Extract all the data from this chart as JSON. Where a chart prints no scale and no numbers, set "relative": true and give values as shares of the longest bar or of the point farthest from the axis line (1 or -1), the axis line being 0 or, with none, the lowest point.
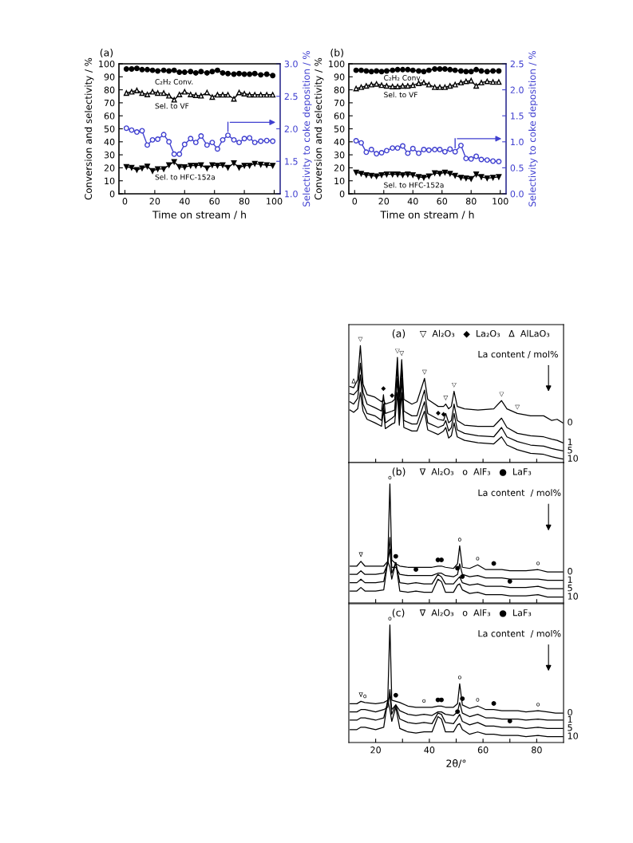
{
  "chart_data": [
    {
      "type": "line",
      "title": "(a)",
      "xlabel": "Time on stream / h",
      "ylabel": "Conversion and selectivity / %",
      "y2label": "Selectivity to coke deposition / %",
      "x": [
        1,
        4.5,
        8,
        11.5,
        15,
        18.5,
        22,
        26,
        29.5,
        33,
        36.5,
        40,
        44,
        47.5,
        51,
        55,
        58.5,
        62,
        65.5,
        69,
        73,
        76.5,
        80,
        83.5,
        87,
        91,
        95,
        99
      ],
      "xlim": [
        -4,
        104
      ],
      "xticks": [
        0,
        20,
        40,
        60,
        80,
        100
      ],
      "ylim": [
        0,
        100
      ],
      "yticks": [
        0,
        10,
        20,
        30,
        40,
        50,
        60,
        70,
        80,
        90,
        100
      ],
      "y2lim": [
        1,
        3
      ],
      "y2ticks": [
        {
          "value": 1,
          "label": "1.0"
        },
        {
          "value": 1.5,
          "label": "1.5"
        },
        {
          "value": 2,
          "label": "2.0"
        },
        {
          "value": 2.5,
          "label": "2.5"
        },
        {
          "value": 3,
          "label": "3.0"
        }
      ],
      "series": [
        {
          "name": "C₂H₂ Conv.",
          "color": "#000000",
          "marker": "circle",
          "values": [
            96,
            96,
            96.5,
            95.5,
            95.5,
            95,
            94.5,
            95,
            94.5,
            95,
            93.5,
            93.5,
            94,
            93,
            94,
            93,
            94,
            95,
            93,
            92.5,
            92,
            92.5,
            92,
            92,
            92.5,
            91.5,
            92,
            91
          ]
        },
        {
          "name": "Sel. to VF",
          "color": "#000000",
          "marker": "triangle-open",
          "values": [
            77.5,
            78.5,
            79.5,
            77.5,
            76.4,
            78.5,
            77.5,
            77.5,
            75.4,
            72.3,
            76.4,
            78.5,
            76.4,
            75.8,
            75.4,
            77.9,
            74.4,
            76.2,
            76.2,
            76.2,
            73,
            77.9,
            77,
            76.2,
            76.2,
            76.2,
            76.2,
            76.2
          ]
        },
        {
          "color": "#4040d0",
          "marker": "circle-open",
          "axis": "y2",
          "values": [
            2.01,
            1.98,
            1.95,
            1.97,
            1.75,
            1.83,
            1.84,
            1.91,
            1.8,
            1.61,
            1.61,
            1.76,
            1.85,
            1.79,
            1.89,
            1.75,
            1.79,
            1.69,
            1.83,
            1.9,
            1.83,
            1.79,
            1.85,
            1.86,
            1.79,
            1.81,
            1.82,
            1.81
          ]
        },
        {
          "name": "Sel. to HFC-152a",
          "color": "#000000",
          "marker": "triangle-down",
          "values": [
            20.7,
            20.1,
            18.4,
            19.7,
            21.1,
            17.6,
            19.1,
            19.1,
            22.1,
            24.6,
            20.7,
            20.5,
            21.7,
            21.7,
            22.1,
            19.7,
            22.1,
            21.7,
            22.1,
            20.1,
            23.6,
            20.1,
            21.7,
            21.7,
            23.2,
            22.5,
            22.1,
            21.7
          ]
        }
      ]
    },
    {
      "type": "line",
      "title": "(b)",
      "xlabel": "Time on stream / h",
      "ylabel": "Conversion and selectivity / %",
      "y2label": "Selectivity to coke deposition / %",
      "x": [
        1,
        4.5,
        8,
        11.5,
        15,
        18.5,
        22,
        26,
        29.5,
        33,
        36.5,
        40,
        44,
        47.5,
        51,
        55,
        58.5,
        62,
        65.5,
        69,
        73,
        76.5,
        80,
        83.5,
        87,
        91,
        95,
        99
      ],
      "xlim": [
        -4,
        104
      ],
      "xticks": [
        0,
        20,
        40,
        60,
        80,
        100
      ],
      "ylim": [
        0,
        100
      ],
      "yticks": [
        0,
        10,
        20,
        30,
        40,
        50,
        60,
        70,
        80,
        90,
        100
      ],
      "y2lim": [
        0,
        2.5
      ],
      "y2ticks": [
        {
          "value": 0,
          "label": "0.0"
        },
        {
          "value": 0.5,
          "label": "0.5"
        },
        {
          "value": 1,
          "label": "1.0"
        },
        {
          "value": 1.5,
          "label": "1.5"
        },
        {
          "value": 2,
          "label": "2.0"
        },
        {
          "value": 2.5,
          "label": "2.5"
        }
      ],
      "series": [
        {
          "name": "C₂H₂ Conv.",
          "color": "#000000",
          "marker": "circle",
          "values": [
            95,
            95,
            94.5,
            94,
            94.5,
            94,
            94.5,
            95,
            95.5,
            95.5,
            95.5,
            95,
            94.5,
            94,
            95,
            96,
            96,
            96,
            95.5,
            95,
            94.5,
            94,
            94,
            95.5,
            94.5,
            94,
            94.5,
            94.5
          ]
        },
        {
          "name": "Sel. to VF",
          "color": "#000000",
          "marker": "triangle-open",
          "values": [
            81,
            82,
            83,
            84,
            84.5,
            83.5,
            83,
            82.5,
            82.5,
            83,
            83,
            83.5,
            85,
            85.5,
            84,
            82,
            82,
            82,
            83,
            84,
            85.5,
            86.5,
            87,
            83,
            85.5,
            86.5,
            86,
            86
          ]
        },
        {
          "color": "#4040d0",
          "marker": "circle-open",
          "axis": "y2",
          "values": [
            1.02,
            0.98,
            0.8,
            0.85,
            0.77,
            0.79,
            0.83,
            0.88,
            0.88,
            0.92,
            0.78,
            0.87,
            0.78,
            0.85,
            0.84,
            0.85,
            0.85,
            0.81,
            0.86,
            0.81,
            0.93,
            0.68,
            0.67,
            0.72,
            0.66,
            0.65,
            0.63,
            0.62
          ]
        },
        {
          "name": "Sel. to HFC-152a",
          "color": "#000000",
          "marker": "triangle-down",
          "values": [
            16.5,
            15.5,
            14.5,
            14,
            13.5,
            14.5,
            15,
            15,
            15,
            14.5,
            15,
            14.5,
            13,
            12.5,
            13.5,
            16,
            15.5,
            16.5,
            15.5,
            14,
            12.5,
            12,
            11.5,
            15,
            13,
            12,
            12.5,
            13
          ]
        }
      ]
    },
    {
      "type": "line",
      "title": "(a)",
      "relative": true,
      "tick_labels": false,
      "marker": "none",
      "x": [
        10.4,
        11.8,
        13.3,
        14.3,
        15.3,
        16.8,
        19.7,
        22.2,
        22.9,
        23.6,
        26.1,
        27.1,
        28.1,
        28.8,
        29.7,
        30.5,
        33.5,
        35.4,
        38.2,
        39.4,
        43.3,
        45.3,
        46.1,
        47.2,
        48.2,
        49.2,
        50.4,
        53.1,
        58.1,
        64,
        66.9,
        68.9,
        72.8,
        77.7,
        82.6,
        85.6,
        87.6,
        89.7
      ],
      "xlim": [
        10,
        90
      ],
      "xticks": [
        {
          "value": 20,
          "label": null
        },
        {
          "value": 30,
          "label": null
        },
        {
          "value": 40,
          "label": null
        },
        {
          "value": 50,
          "label": null
        },
        {
          "value": 60,
          "label": null
        },
        {
          "value": 70,
          "label": null
        },
        {
          "value": 80,
          "label": null
        }
      ],
      "annotations": [
        "▽  Al₂O₃   ◆  La₂O₃   Δ  AlLaO₃",
        "La content / mol%",
        {
          "text": "▽",
          "x": 14.3,
          "y": 1
        },
        {
          "text": "Δ",
          "x": 11.8,
          "y": 0.64
        },
        {
          "text": "▽",
          "x": 28.1,
          "y": 0.9
        },
        {
          "text": "▽",
          "x": 29.7,
          "y": 0.88
        },
        {
          "text": "▽",
          "x": 38.2,
          "y": 0.72
        },
        {
          "text": "▽",
          "x": 46.1,
          "y": 0.5
        },
        {
          "text": "▽",
          "x": 49.2,
          "y": 0.61
        },
        {
          "text": "▽",
          "x": 66.9,
          "y": 0.53
        },
        {
          "text": "▽",
          "x": 72.8,
          "y": 0.42
        },
        {
          "text": "◆",
          "x": 22.9,
          "y": 0.58
        },
        {
          "text": "◆",
          "x": 26.1,
          "y": 0.52
        },
        {
          "text": "◆",
          "x": 43.3,
          "y": 0.37
        },
        {
          "text": "◆",
          "x": 45.3,
          "y": 0.36
        }
      ],
      "series": [
        {
          "name": "0",
          "color": "#000000",
          "values": [
            0.65,
            0.64,
            0.71,
            1,
            0.67,
            0.58,
            0.56,
            0.52,
            0.54,
            0.5,
            0.52,
            0.54,
            0.9,
            0.56,
            0.88,
            0.54,
            0.5,
            0.52,
            0.72,
            0.54,
            0.48,
            0.48,
            0.5,
            0.46,
            0.48,
            0.61,
            0.48,
            0.46,
            0.45,
            0.46,
            0.53,
            0.46,
            0.42,
            0.4,
            0.4,
            0.36,
            0.37,
            0.34
          ]
        },
        {
          "name": "1",
          "color": "#000000",
          "values": [
            0.59,
            0.58,
            0.62,
            0.85,
            0.6,
            0.5,
            0.47,
            0.44,
            0.58,
            0.42,
            0.44,
            0.45,
            0.83,
            0.46,
            0.82,
            0.44,
            0.4,
            0.4,
            0.62,
            0.42,
            0.37,
            0.36,
            0.42,
            0.34,
            0.36,
            0.5,
            0.36,
            0.32,
            0.31,
            0.31,
            0.38,
            0.3,
            0.25,
            0.23,
            0.22,
            0.2,
            0.19,
            0.17
          ]
        },
        {
          "name": "5",
          "color": "#000000",
          "values": [
            0.52,
            0.5,
            0.55,
            0.75,
            0.5,
            0.42,
            0.4,
            0.36,
            0.5,
            0.34,
            0.38,
            0.4,
            0.72,
            0.38,
            0.72,
            0.36,
            0.33,
            0.33,
            0.52,
            0.34,
            0.3,
            0.32,
            0.36,
            0.27,
            0.3,
            0.42,
            0.28,
            0.25,
            0.23,
            0.22,
            0.3,
            0.22,
            0.18,
            0.15,
            0.14,
            0.12,
            0.11,
            0.1
          ]
        },
        {
          "name": "10",
          "color": "#000000",
          "values": [
            0.45,
            0.43,
            0.46,
            0.6,
            0.44,
            0.37,
            0.34,
            0.31,
            0.45,
            0.29,
            0.33,
            0.34,
            0.6,
            0.32,
            0.6,
            0.3,
            0.27,
            0.27,
            0.44,
            0.28,
            0.24,
            0.27,
            0.3,
            0.21,
            0.23,
            0.34,
            0.22,
            0.19,
            0.17,
            0.16,
            0.22,
            0.15,
            0.11,
            0.08,
            0.07,
            0.05,
            0.04,
            0.03
          ]
        }
      ]
    },
    {
      "type": "line",
      "title": "(b)",
      "relative": true,
      "tick_labels": false,
      "marker": "none",
      "x": [
        10.5,
        13,
        14.5,
        16,
        20,
        23,
        24.5,
        25.3,
        26,
        27.5,
        29,
        32,
        35,
        38,
        41,
        43.2,
        44.5,
        46,
        49,
        50.5,
        51.3,
        52.3,
        55,
        58,
        61,
        64,
        67,
        70,
        73,
        76,
        80.5,
        84,
        87,
        89.7
      ],
      "xlim": [
        10,
        90
      ],
      "xticks": [
        {
          "value": 20,
          "label": null
        },
        {
          "value": 30,
          "label": null
        },
        {
          "value": 40,
          "label": null
        },
        {
          "value": 50,
          "label": null
        },
        {
          "value": 60,
          "label": null
        },
        {
          "value": 70,
          "label": null
        },
        {
          "value": 80,
          "label": null
        }
      ],
      "annotations": [
        "∇  Al₂O₃   o  AlF₃   ●  LaF₃",
        "La content  / mol%",
        {
          "text": "o",
          "x": 25.3,
          "y": 1.0
        },
        {
          "text": "∇",
          "x": 14.5,
          "y": 0.35
        },
        {
          "text": "●",
          "x": 27.5,
          "y": 0.34
        },
        {
          "text": "●",
          "x": 43.2,
          "y": 0.31
        },
        {
          "text": "●",
          "x": 44.5,
          "y": 0.31
        },
        {
          "text": "o",
          "x": 51.3,
          "y": 0.48
        },
        {
          "text": "o",
          "x": 58,
          "y": 0.32
        },
        {
          "text": "●",
          "x": 64,
          "y": 0.28
        },
        {
          "text": "o",
          "x": 80.5,
          "y": 0.28
        },
        {
          "text": "●",
          "x": 35,
          "y": 0.23
        },
        {
          "text": "●",
          "x": 50.5,
          "y": 0.24
        },
        {
          "text": "●",
          "x": 52.3,
          "y": 0.17
        },
        {
          "text": "●",
          "x": 70,
          "y": 0.13
        }
      ],
      "series": [
        {
          "name": "0",
          "color": "#000000",
          "values": [
            0.31,
            0.31,
            0.35,
            0.31,
            0.31,
            0.31,
            0.35,
            1.0,
            0.36,
            0.33,
            0.31,
            0.3,
            0.3,
            0.3,
            0.3,
            0.31,
            0.31,
            0.3,
            0.29,
            0.33,
            0.48,
            0.3,
            0.29,
            0.32,
            0.28,
            0.28,
            0.28,
            0.27,
            0.27,
            0.27,
            0.28,
            0.26,
            0.26,
            0.26
          ]
        },
        {
          "name": "1",
          "color": "#000000",
          "values": [
            0.24,
            0.24,
            0.27,
            0.24,
            0.24,
            0.25,
            0.33,
            0.55,
            0.3,
            0.3,
            0.24,
            0.23,
            0.23,
            0.23,
            0.23,
            0.25,
            0.25,
            0.23,
            0.22,
            0.24,
            0.33,
            0.24,
            0.22,
            0.23,
            0.21,
            0.21,
            0.21,
            0.2,
            0.2,
            0.2,
            0.2,
            0.19,
            0.19,
            0.19
          ]
        },
        {
          "name": "5",
          "color": "#000000",
          "values": [
            0.17,
            0.17,
            0.2,
            0.17,
            0.17,
            0.18,
            0.35,
            0.45,
            0.25,
            0.34,
            0.17,
            0.16,
            0.17,
            0.16,
            0.16,
            0.24,
            0.22,
            0.16,
            0.16,
            0.2,
            0.22,
            0.17,
            0.15,
            0.16,
            0.14,
            0.14,
            0.14,
            0.13,
            0.13,
            0.13,
            0.14,
            0.12,
            0.12,
            0.12
          ]
        },
        {
          "name": "10",
          "color": "#000000",
          "values": [
            0.1,
            0.1,
            0.13,
            0.1,
            0.1,
            0.11,
            0.35,
            0.3,
            0.2,
            0.34,
            0.1,
            0.09,
            0.1,
            0.09,
            0.09,
            0.2,
            0.18,
            0.09,
            0.09,
            0.15,
            0.16,
            0.11,
            0.08,
            0.09,
            0.07,
            0.07,
            0.07,
            0.06,
            0.06,
            0.06,
            0.07,
            0.05,
            0.05,
            0.05
          ]
        }
      ]
    },
    {
      "type": "line",
      "title": "(c)",
      "relative": true,
      "tick_labels": "x",
      "marker": "none",
      "xlabel": "2θ/°",
      "x": [
        10.5,
        13,
        14.5,
        16,
        20,
        23,
        24.5,
        25.3,
        26,
        27.5,
        29,
        32,
        35,
        38,
        41,
        43.2,
        44.5,
        46,
        49,
        50.5,
        51.3,
        52.3,
        55,
        58,
        61,
        64,
        67,
        70,
        73,
        76,
        80.5,
        84,
        87,
        89.7
      ],
      "xlim": [
        10,
        90
      ],
      "xticks": [
        20,
        {
          "value": 30,
          "label": null
        },
        40,
        {
          "value": 50,
          "label": null
        },
        60,
        {
          "value": 70,
          "label": null
        },
        80
      ],
      "annotations": [
        "∇  Al₂O₃   o  AlF₃   ●  LaF₃",
        "La content  / mol%",
        {
          "text": "o",
          "x": 25.3,
          "y": 1.0
        },
        {
          "text": "∇",
          "x": 14.5,
          "y": 0.35
        },
        {
          "text": "o",
          "x": 16,
          "y": 0.34
        },
        {
          "text": "●",
          "x": 27.5,
          "y": 0.35
        },
        {
          "text": "o",
          "x": 38,
          "y": 0.3
        },
        {
          "text": "●",
          "x": 43.2,
          "y": 0.31
        },
        {
          "text": "●",
          "x": 44.5,
          "y": 0.31
        },
        {
          "text": "o",
          "x": 51.3,
          "y": 0.5
        },
        {
          "text": "●",
          "x": 52.3,
          "y": 0.32
        },
        {
          "text": "o",
          "x": 58,
          "y": 0.31
        },
        {
          "text": "●",
          "x": 64,
          "y": 0.28
        },
        {
          "text": "o",
          "x": 80.5,
          "y": 0.27
        },
        {
          "text": "●",
          "x": 50.5,
          "y": 0.21
        },
        {
          "text": "●",
          "x": 70,
          "y": 0.13
        }
      ],
      "series": [
        {
          "name": "0",
          "color": "#000000",
          "values": [
            0.33,
            0.33,
            0.35,
            0.34,
            0.33,
            0.34,
            0.36,
            1.0,
            0.36,
            0.35,
            0.34,
            0.31,
            0.3,
            0.3,
            0.3,
            0.31,
            0.31,
            0.3,
            0.3,
            0.33,
            0.5,
            0.32,
            0.29,
            0.31,
            0.28,
            0.28,
            0.27,
            0.27,
            0.27,
            0.26,
            0.27,
            0.26,
            0.25,
            0.25
          ]
        },
        {
          "name": "1",
          "color": "#000000",
          "values": [
            0.26,
            0.26,
            0.28,
            0.28,
            0.26,
            0.28,
            0.3,
            0.45,
            0.28,
            0.32,
            0.27,
            0.24,
            0.23,
            0.24,
            0.23,
            0.26,
            0.26,
            0.24,
            0.23,
            0.26,
            0.34,
            0.25,
            0.22,
            0.24,
            0.21,
            0.21,
            0.2,
            0.2,
            0.2,
            0.19,
            0.2,
            0.19,
            0.19,
            0.19
          ]
        },
        {
          "name": "5",
          "color": "#000000",
          "values": [
            0.19,
            0.19,
            0.21,
            0.21,
            0.19,
            0.21,
            0.35,
            0.4,
            0.24,
            0.32,
            0.2,
            0.17,
            0.16,
            0.17,
            0.16,
            0.25,
            0.24,
            0.17,
            0.16,
            0.21,
            0.24,
            0.18,
            0.15,
            0.17,
            0.14,
            0.14,
            0.13,
            0.13,
            0.13,
            0.12,
            0.13,
            0.12,
            0.12,
            0.12
          ]
        },
        {
          "name": "10",
          "color": "#000000",
          "values": [
            0.11,
            0.11,
            0.13,
            0.13,
            0.11,
            0.13,
            0.36,
            0.28,
            0.18,
            0.3,
            0.12,
            0.09,
            0.08,
            0.09,
            0.09,
            0.22,
            0.2,
            0.09,
            0.09,
            0.15,
            0.16,
            0.11,
            0.07,
            0.09,
            0.07,
            0.07,
            0.06,
            0.06,
            0.06,
            0.05,
            0.06,
            0.05,
            0.05,
            0.05
          ]
        }
      ]
    }
  ]
}
